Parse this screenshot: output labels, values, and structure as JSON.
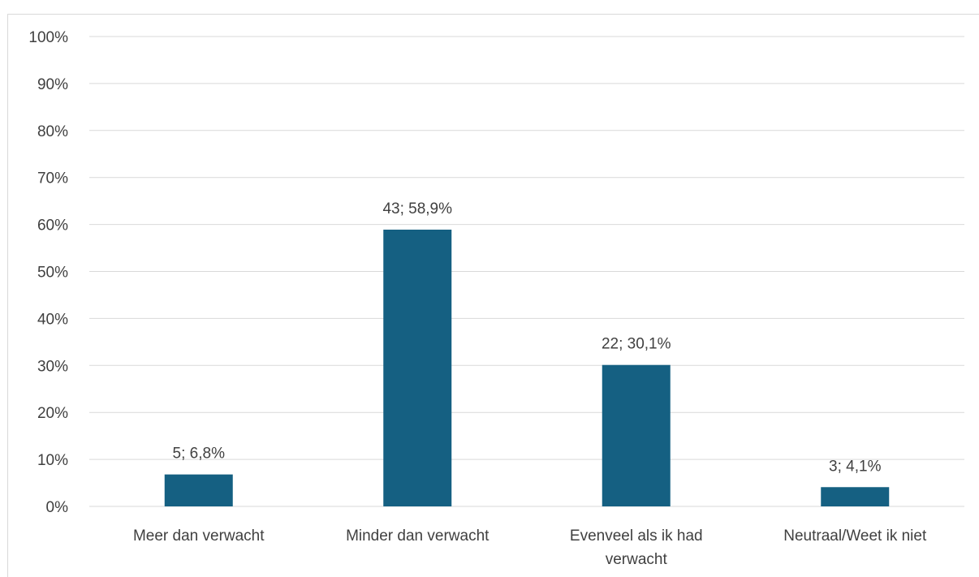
{
  "chart_data": {
    "type": "bar",
    "categories": [
      [
        "Meer dan verwacht"
      ],
      [
        "Minder dan verwacht"
      ],
      [
        "Evenveel als ik had",
        "verwacht"
      ],
      [
        "Neutraal/Weet ik niet"
      ]
    ],
    "values": [
      6.8,
      58.9,
      30.1,
      4.1
    ],
    "counts": [
      5,
      43,
      22,
      3
    ],
    "data_labels": [
      "5; 6,8%",
      "43; 58,9%",
      "22; 30,1%",
      "3; 4,1%"
    ],
    "y_ticks": [
      "0%",
      "10%",
      "20%",
      "30%",
      "40%",
      "50%",
      "60%",
      "70%",
      "80%",
      "90%",
      "100%"
    ],
    "ylim": [
      0,
      100
    ],
    "grid": true,
    "legend": "none",
    "bar_color": "#156082",
    "grid_color": "#d9d9d9",
    "axis_color": "#d9d9d9",
    "title": "",
    "xlabel": "",
    "ylabel": ""
  }
}
